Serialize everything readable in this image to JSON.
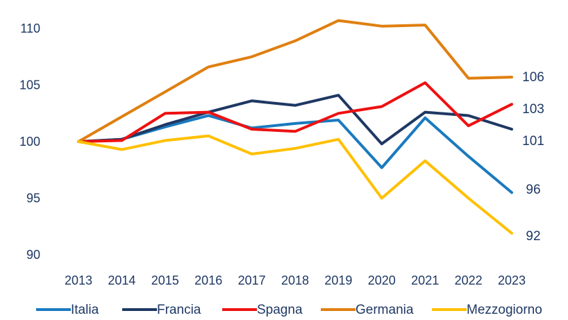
{
  "chart_data": {
    "type": "line",
    "title": "",
    "xlabel": "",
    "ylabel": "",
    "ylim": [
      90,
      110
    ],
    "y_ticks": [
      "110",
      "105",
      "100",
      "95",
      "90"
    ],
    "categories": [
      "2013",
      "2014",
      "2015",
      "2016",
      "2017",
      "2018",
      "2019",
      "2020",
      "2021",
      "2022",
      "2023"
    ],
    "grid": false,
    "legend_position": "bottom",
    "series": [
      {
        "name": "Italia",
        "color": "#1a7abf",
        "end_label": "96",
        "values": [
          100,
          100.2,
          101.3,
          102.3,
          101.2,
          101.6,
          101.9,
          97.7,
          102.1,
          98.7,
          95.5
        ]
      },
      {
        "name": "Francia",
        "color": "#1f3864",
        "end_label": "101",
        "values": [
          100,
          100.2,
          101.5,
          102.6,
          103.6,
          103.2,
          104.1,
          99.8,
          102.6,
          102.3,
          101.1
        ]
      },
      {
        "name": "Spagna",
        "color": "#ee1111",
        "end_label": "103",
        "values": [
          100,
          100.1,
          102.5,
          102.6,
          101.1,
          100.9,
          102.5,
          103.1,
          105.2,
          101.4,
          103.3
        ]
      },
      {
        "name": "Germania",
        "color": "#e07f10",
        "end_label": "106",
        "values": [
          100,
          102.2,
          104.4,
          106.6,
          107.5,
          108.9,
          110.7,
          110.2,
          110.3,
          105.6,
          105.7
        ]
      },
      {
        "name": "Mezzogiorno",
        "color": "#ffc000",
        "end_label": "92",
        "values": [
          100,
          99.3,
          100.1,
          100.5,
          98.9,
          99.4,
          100.2,
          95.0,
          98.3,
          95.0,
          91.9
        ]
      }
    ]
  }
}
